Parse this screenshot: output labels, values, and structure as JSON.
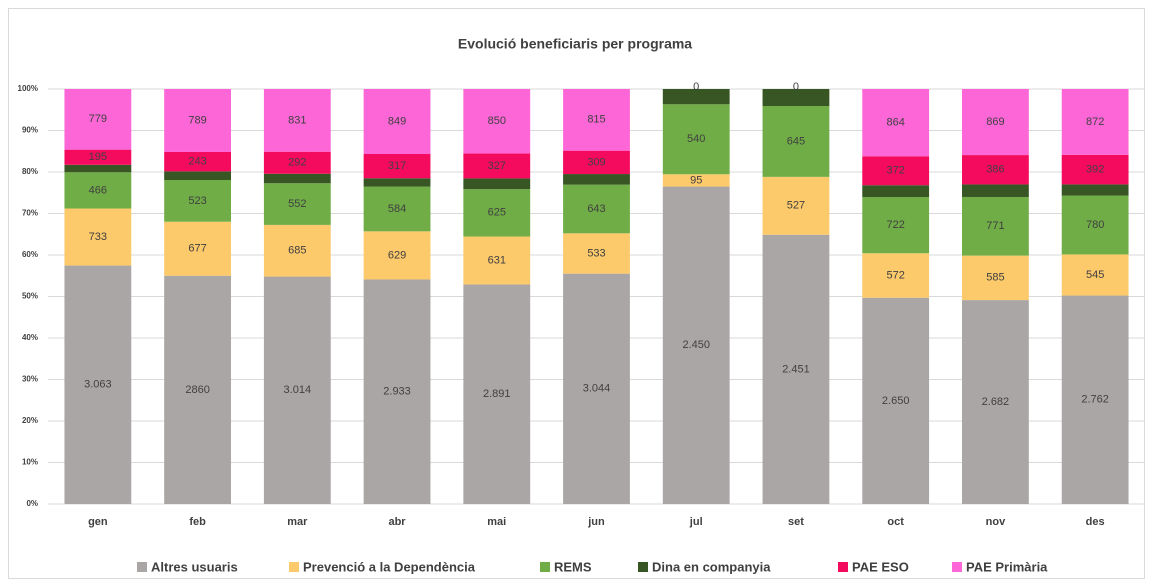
{
  "chart_data": {
    "type": "stacked_bar_100",
    "title": "Evolució  beneficiaris  per programa",
    "categories": [
      "gen",
      "feb",
      "mar",
      "abr",
      "mai",
      "jun",
      "jul",
      "set",
      "oct",
      "nov",
      "des"
    ],
    "ylim": [
      0,
      100
    ],
    "yticks": [
      {
        "value": 0,
        "label": "0%"
      },
      {
        "value": 10,
        "label": "10%"
      },
      {
        "value": 20,
        "label": "20%"
      },
      {
        "value": 30,
        "label": "30%"
      },
      {
        "value": 40,
        "label": "40%"
      },
      {
        "value": 50,
        "label": "50%"
      },
      {
        "value": 60,
        "label": "60%"
      },
      {
        "value": 70,
        "label": "70%"
      },
      {
        "value": 80,
        "label": "80%"
      },
      {
        "value": 90,
        "label": "90%"
      },
      {
        "value": 100,
        "label": "100%"
      }
    ],
    "grid": true,
    "legend": "bottom",
    "series": [
      {
        "name": "Altres usuaris",
        "color": "#aba6a6",
        "values": [
          3063,
          2860,
          3014,
          2933,
          2891,
          3044,
          2450,
          2451,
          2650,
          2682,
          2762
        ],
        "value_labels": [
          "3.063",
          "2860",
          "3.014",
          "2.933",
          "2.891",
          "3.044",
          "2.450",
          "2.451",
          "2.650",
          "2.682",
          "2.762"
        ]
      },
      {
        "name": "Prevenció a la Dependència",
        "color": "#fcc96b",
        "values": [
          733,
          677,
          685,
          629,
          631,
          533,
          95,
          527,
          572,
          585,
          545
        ],
        "value_labels": [
          "733",
          "677",
          "685",
          "629",
          "631",
          "533",
          "95",
          "527",
          "572",
          "585",
          "545"
        ]
      },
      {
        "name": "REMS",
        "color": "#70ad47",
        "values": [
          466,
          523,
          552,
          584,
          625,
          643,
          540,
          645,
          722,
          771,
          780
        ],
        "value_labels": [
          "466",
          "523",
          "552",
          "584",
          "625",
          "643",
          "540",
          "645",
          "722",
          "771",
          "780"
        ]
      },
      {
        "name": "Dina en companyia",
        "color": "#375623",
        "values": [
          95,
          108,
          126,
          109,
          141,
          140,
          118,
          155,
          152,
          165,
          148
        ]
      },
      {
        "name": "PAE ESO",
        "color": "#f50b5e",
        "values": [
          195,
          243,
          292,
          317,
          327,
          309,
          0,
          0,
          372,
          386,
          392
        ],
        "value_labels": [
          "195",
          "243",
          "292",
          "317",
          "327",
          "309",
          "0",
          "0",
          "372",
          "386",
          "392"
        ]
      },
      {
        "name": "PAE Primària",
        "color": "#fc66d6",
        "values": [
          779,
          789,
          831,
          849,
          850,
          815,
          0,
          0,
          864,
          869,
          872
        ],
        "value_labels": [
          "779",
          "789",
          "831",
          "849",
          "850",
          "815",
          null,
          null,
          "864",
          "869",
          "872"
        ]
      }
    ]
  }
}
